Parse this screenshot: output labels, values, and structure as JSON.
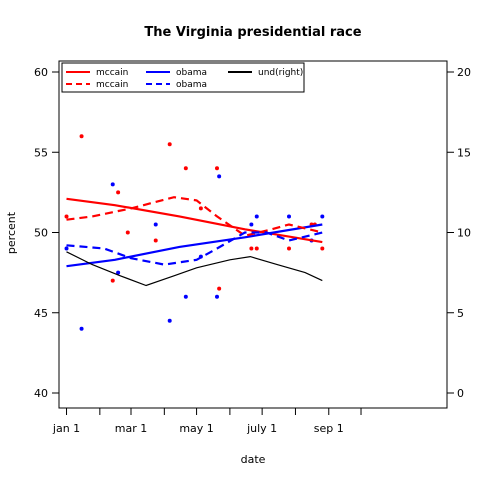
{
  "chart_data": {
    "type": "scatter",
    "title": "The Virginia presidential race",
    "xlabel": "date",
    "ylabel": "percent",
    "x_ticks": [
      "jan 1",
      "mar 1",
      "may 1",
      "july 1",
      "sep 1"
    ],
    "ylim": [
      40,
      60
    ],
    "y_ticks": [
      40,
      45,
      50,
      55,
      60
    ],
    "y2lim": [
      0,
      20
    ],
    "y2_ticks": [
      0,
      5,
      10,
      15,
      20
    ],
    "xlim": [
      "2007-12-25",
      "2008-12-20"
    ],
    "tick_dates": [
      "2008-01-01",
      "2008-02-01",
      "2008-03-01",
      "2008-04-01",
      "2008-05-01",
      "2008-06-01",
      "2008-07-01",
      "2008-08-01",
      "2008-09-01",
      "2008-10-01"
    ],
    "label_dates": [
      "2008-01-01",
      "2008-03-01",
      "2008-05-01",
      "2008-07-01",
      "2008-09-01"
    ],
    "legend_position": "top-left",
    "legend": [
      {
        "label": "mccain",
        "color": "#ff0000",
        "style": "solid"
      },
      {
        "label": "mccain",
        "color": "#ff0000",
        "style": "dashed"
      },
      {
        "label": "obama",
        "color": "#0000ff",
        "style": "solid"
      },
      {
        "label": "obama",
        "color": "#0000ff",
        "style": "dashed"
      },
      {
        "label": "und(right)",
        "color": "#000000",
        "style": "solid"
      }
    ],
    "series": [
      {
        "name": "mccain",
        "kind": "points",
        "color": "#ff0000",
        "points": [
          [
            "2008-01-01",
            51
          ],
          [
            "2008-01-15",
            56
          ],
          [
            "2008-02-13",
            47
          ],
          [
            "2008-02-18",
            52.5
          ],
          [
            "2008-02-27",
            50
          ],
          [
            "2008-03-24",
            49.5
          ],
          [
            "2008-04-06",
            55.5
          ],
          [
            "2008-04-21",
            54
          ],
          [
            "2008-05-05",
            51.5
          ],
          [
            "2008-05-20",
            54
          ],
          [
            "2008-05-22",
            46.5
          ],
          [
            "2008-06-21",
            49
          ],
          [
            "2008-06-26",
            49
          ],
          [
            "2008-07-26",
            49
          ],
          [
            "2008-08-16",
            50.5
          ],
          [
            "2008-08-19",
            50.5
          ],
          [
            "2008-08-26",
            49
          ]
        ]
      },
      {
        "name": "obama",
        "kind": "points",
        "color": "#0000ff",
        "points": [
          [
            "2008-01-01",
            49
          ],
          [
            "2008-01-15",
            44
          ],
          [
            "2008-02-13",
            53
          ],
          [
            "2008-02-18",
            47.5
          ],
          [
            "2008-03-24",
            50.5
          ],
          [
            "2008-04-06",
            44.5
          ],
          [
            "2008-04-21",
            46
          ],
          [
            "2008-05-05",
            48.5
          ],
          [
            "2008-05-20",
            46
          ],
          [
            "2008-05-22",
            53.5
          ],
          [
            "2008-06-21",
            50.5
          ],
          [
            "2008-06-26",
            51
          ],
          [
            "2008-07-26",
            51
          ],
          [
            "2008-08-16",
            49.5
          ],
          [
            "2008-08-26",
            51
          ]
        ]
      },
      {
        "name": "mccain",
        "kind": "line",
        "color": "#ff0000",
        "style": "solid",
        "axis": "left",
        "points": [
          [
            "2008-01-01",
            52.1
          ],
          [
            "2008-02-15",
            51.7
          ],
          [
            "2008-04-15",
            51.0
          ],
          [
            "2008-06-15",
            50.2
          ],
          [
            "2008-08-26",
            49.4
          ]
        ]
      },
      {
        "name": "obama",
        "kind": "line",
        "color": "#0000ff",
        "style": "solid",
        "axis": "left",
        "points": [
          [
            "2008-01-01",
            47.9
          ],
          [
            "2008-02-15",
            48.3
          ],
          [
            "2008-04-15",
            49.1
          ],
          [
            "2008-06-15",
            49.7
          ],
          [
            "2008-08-26",
            50.5
          ]
        ]
      },
      {
        "name": "mccain",
        "kind": "line",
        "color": "#ff0000",
        "style": "dashed",
        "axis": "left",
        "points": [
          [
            "2008-01-01",
            50.8
          ],
          [
            "2008-01-25",
            51.0
          ],
          [
            "2008-03-01",
            51.5
          ],
          [
            "2008-04-10",
            52.2
          ],
          [
            "2008-05-01",
            52.0
          ],
          [
            "2008-05-20",
            51.0
          ],
          [
            "2008-06-15",
            49.8
          ],
          [
            "2008-07-10",
            50.2
          ],
          [
            "2008-07-26",
            50.5
          ],
          [
            "2008-08-26",
            50.0
          ]
        ]
      },
      {
        "name": "obama",
        "kind": "line",
        "color": "#0000ff",
        "style": "dashed",
        "axis": "left",
        "points": [
          [
            "2008-01-01",
            49.2
          ],
          [
            "2008-02-05",
            49.0
          ],
          [
            "2008-03-01",
            48.4
          ],
          [
            "2008-04-01",
            48.0
          ],
          [
            "2008-05-01",
            48.3
          ],
          [
            "2008-05-20",
            49.0
          ],
          [
            "2008-06-15",
            50.0
          ],
          [
            "2008-07-05",
            50.0
          ],
          [
            "2008-07-26",
            49.5
          ],
          [
            "2008-08-26",
            50.0
          ]
        ]
      },
      {
        "name": "und(right)",
        "kind": "line",
        "color": "#000000",
        "style": "solid",
        "axis": "right",
        "points": [
          [
            "2008-01-01",
            8.8
          ],
          [
            "2008-01-25",
            8.0
          ],
          [
            "2008-02-20",
            7.3
          ],
          [
            "2008-03-15",
            6.7
          ],
          [
            "2008-04-10",
            7.3
          ],
          [
            "2008-05-01",
            7.8
          ],
          [
            "2008-06-01",
            8.3
          ],
          [
            "2008-06-20",
            8.5
          ],
          [
            "2008-07-15",
            8.0
          ],
          [
            "2008-08-10",
            7.5
          ],
          [
            "2008-08-26",
            7.0
          ]
        ]
      }
    ]
  }
}
